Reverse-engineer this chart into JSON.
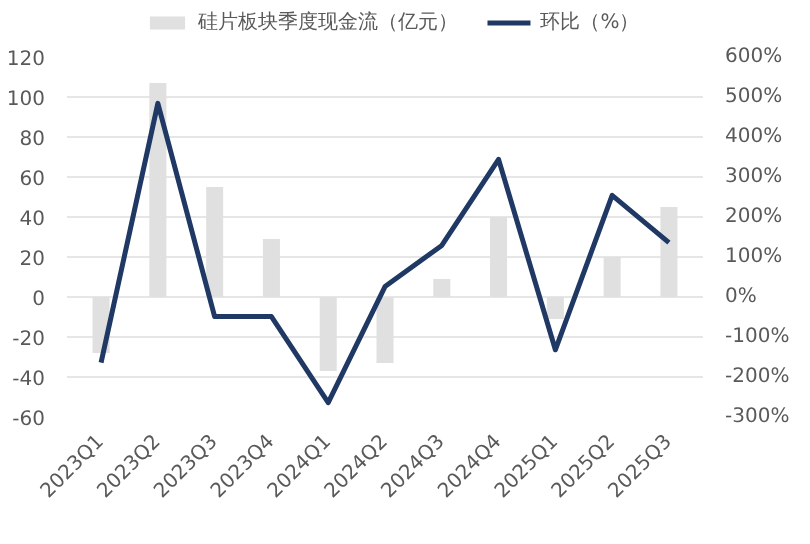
{
  "chart_data": {
    "type": "bar",
    "categories": [
      "2023Q1",
      "2023Q2",
      "2023Q3",
      "2023Q4",
      "2024Q1",
      "2024Q2",
      "2024Q3",
      "2024Q4",
      "2025Q1",
      "2025Q2",
      "2025Q3"
    ],
    "series": [
      {
        "name": "硅片板块季度现金流（亿元）",
        "color": "#e0e0e0",
        "values": [
          -28,
          107,
          55,
          29,
          -37,
          -33,
          9,
          40,
          -11,
          20,
          45
        ]
      },
      {
        "name": "环比（%）",
        "type": "line",
        "axis": "y2",
        "color": "#1f3864",
        "values": [
          -164,
          484,
          -49,
          -49,
          -264,
          26,
          129,
          344,
          -132,
          254,
          136
        ]
      }
    ],
    "ylim": [
      -60,
      120
    ],
    "yticks": [
      -60,
      -40,
      -20,
      0,
      20,
      40,
      60,
      80,
      100,
      120
    ],
    "y2lim": [
      -300,
      600
    ],
    "y2ticks": [
      {
        "value": -300,
        "label": "-300%"
      },
      {
        "value": -200,
        "label": "-200%"
      },
      {
        "value": -100,
        "label": "-100%"
      },
      {
        "value": 0,
        "label": "0%"
      },
      {
        "value": 100,
        "label": "100%"
      },
      {
        "value": 200,
        "label": "200%"
      },
      {
        "value": 300,
        "label": "300%"
      },
      {
        "value": 400,
        "label": "400%"
      },
      {
        "value": 500,
        "label": "500%"
      },
      {
        "value": 600,
        "label": "600%"
      }
    ],
    "grid": "y",
    "legend": "top",
    "line_style": "solid",
    "marker": "none"
  }
}
